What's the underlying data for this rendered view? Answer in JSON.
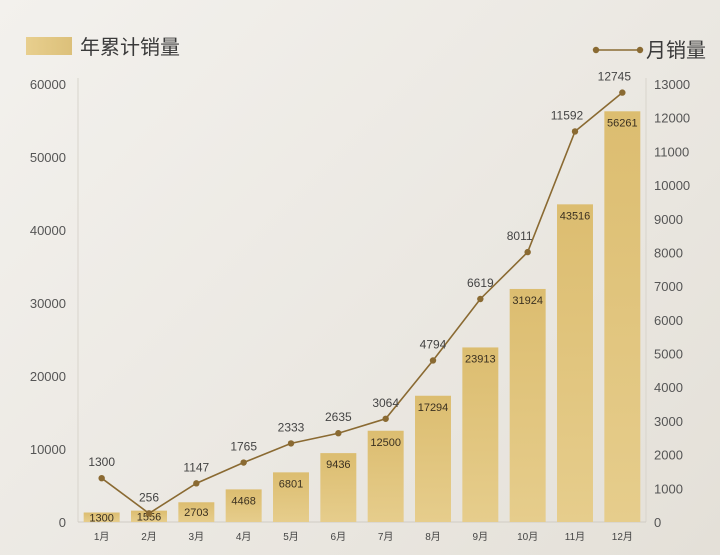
{
  "chart_data": {
    "type": "bar",
    "categories": [
      "1月",
      "2月",
      "3月",
      "4月",
      "5月",
      "6月",
      "7月",
      "8月",
      "9月",
      "10月",
      "11月",
      "12月"
    ],
    "series": [
      {
        "name": "年累计销量",
        "type": "bar",
        "axis": "left",
        "color": "#d9bb6e",
        "values": [
          1300,
          1556,
          2703,
          4468,
          6801,
          9436,
          12500,
          17294,
          23913,
          31924,
          43516,
          56261
        ]
      },
      {
        "name": "月销量",
        "type": "line",
        "axis": "right",
        "color": "#8a6a32",
        "values": [
          1300,
          256,
          1147,
          1765,
          2333,
          2635,
          3064,
          4794,
          6619,
          8011,
          11592,
          12745
        ]
      }
    ],
    "y_left": {
      "ylim": [
        0,
        60000
      ],
      "ticks": [
        "0",
        "10000",
        "20000",
        "30000",
        "40000",
        "50000",
        "60000"
      ]
    },
    "y_right": {
      "ylim": [
        0,
        13000
      ],
      "ticks": [
        "0",
        "1000",
        "2000",
        "3000",
        "4000",
        "5000",
        "6000",
        "7000",
        "8000",
        "9000",
        "10000",
        "11000",
        "12000",
        "13000"
      ]
    },
    "legend": {
      "bar_label": "年累计销量",
      "bar_placement": "top-left",
      "line_label": "月销量",
      "line_placement": "top-right"
    },
    "grid": false
  }
}
